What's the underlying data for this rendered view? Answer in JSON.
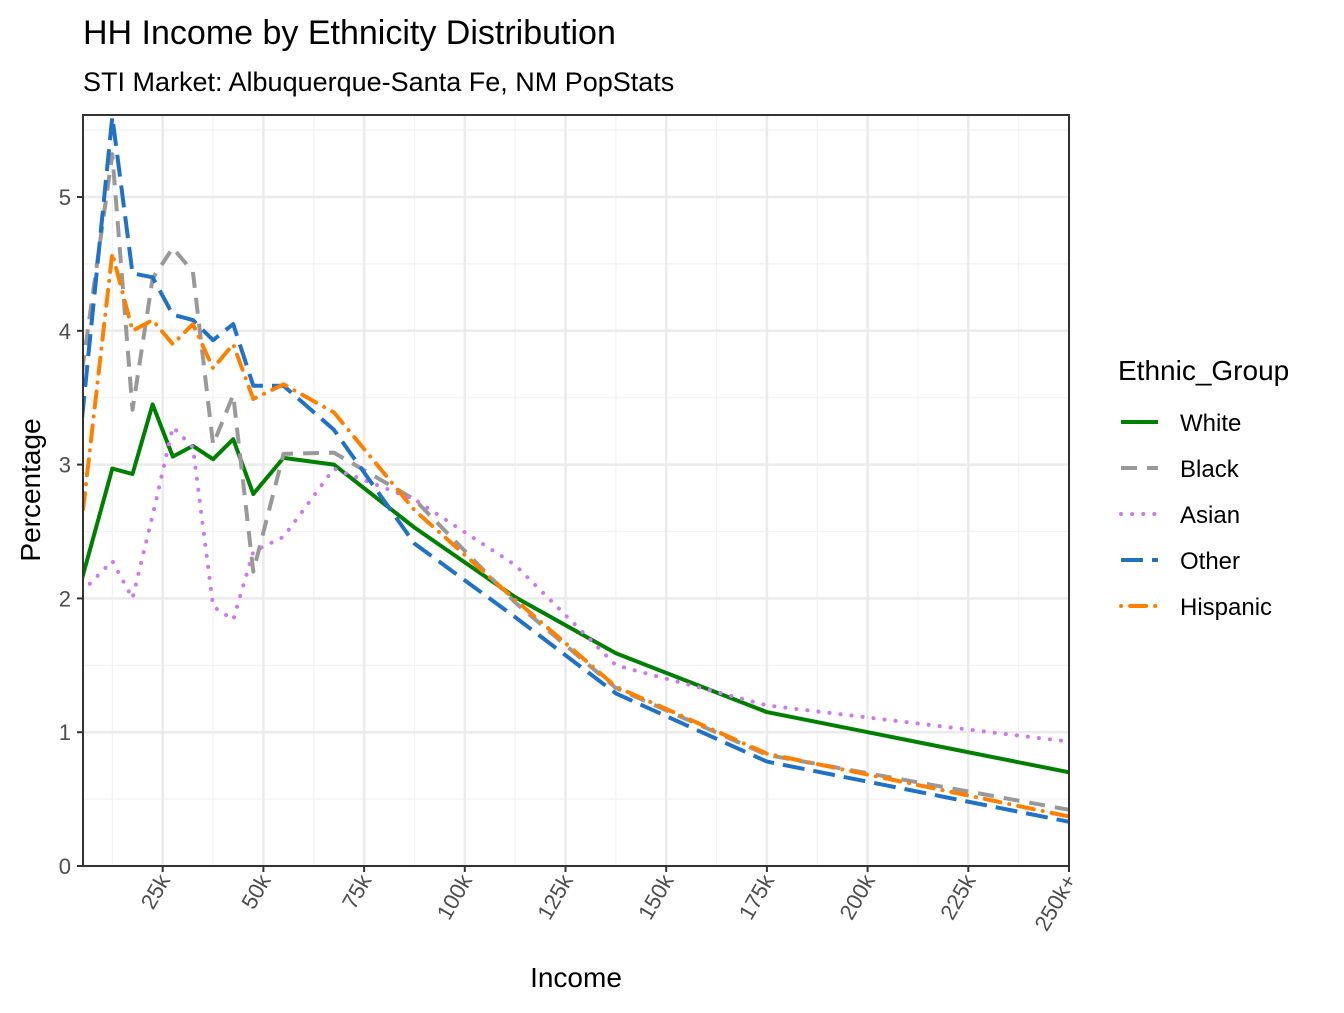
{
  "chart_data": {
    "type": "line",
    "title": "HH Income by Ethnicity Distribution",
    "subtitle": "STI Market: Albuquerque-Santa Fe, NM PopStats",
    "xlabel": "Income",
    "ylabel": "Percentage",
    "xlim": [
      5,
      250
    ],
    "ylim": [
      0,
      5.61
    ],
    "x_ticks": [
      25,
      50,
      75,
      100,
      125,
      150,
      175,
      200,
      225,
      250
    ],
    "x_tick_labels": [
      "25k",
      "50k",
      "75k",
      "100k",
      "125k",
      "150k",
      "175k",
      "200k",
      "225k",
      "250k+"
    ],
    "y_ticks": [
      0,
      1,
      2,
      3,
      4,
      5
    ],
    "y_tick_labels": [
      "0",
      "1",
      "2",
      "3",
      "4",
      "5"
    ],
    "grid": true,
    "legend_title": "Ethnic_Group",
    "legend_placement": "right",
    "x": [
      5,
      12.5,
      17.5,
      22.5,
      27.5,
      32.5,
      37.5,
      42.5,
      47.5,
      55,
      67.5,
      87.5,
      112.5,
      137.5,
      175,
      250
    ],
    "series": [
      {
        "name": "White",
        "color": "#008000",
        "dash": "solid",
        "values": [
          2.15,
          2.97,
          2.93,
          3.45,
          3.06,
          3.14,
          3.04,
          3.19,
          2.78,
          3.05,
          3.0,
          2.53,
          2.01,
          1.59,
          1.15,
          0.7
        ]
      },
      {
        "name": "Black",
        "color": "#999999",
        "dash": "dashed",
        "values": [
          3.7,
          5.32,
          3.41,
          4.39,
          4.62,
          4.44,
          3.15,
          3.52,
          2.2,
          3.08,
          3.09,
          2.74,
          1.97,
          1.33,
          0.83,
          0.42
        ]
      },
      {
        "name": "Asian",
        "color": "#CC79F2",
        "dash": "dotted",
        "values": [
          2.05,
          2.28,
          2.0,
          2.62,
          3.28,
          3.13,
          1.94,
          1.84,
          2.35,
          2.46,
          2.97,
          2.74,
          2.25,
          1.5,
          1.2,
          0.93
        ]
      },
      {
        "name": "Other",
        "color": "#1F72C8",
        "dash": "longdash",
        "values": [
          3.35,
          5.6,
          4.43,
          4.4,
          4.12,
          4.08,
          3.93,
          4.05,
          3.59,
          3.59,
          3.26,
          2.41,
          1.86,
          1.29,
          0.78,
          0.33
        ]
      },
      {
        "name": "Hispanic",
        "color": "#FF8000",
        "dash": "dotdash",
        "values": [
          2.6,
          4.58,
          4.0,
          4.08,
          3.9,
          4.05,
          3.72,
          3.9,
          3.49,
          3.6,
          3.39,
          2.66,
          1.99,
          1.34,
          0.84,
          0.37
        ]
      }
    ]
  }
}
